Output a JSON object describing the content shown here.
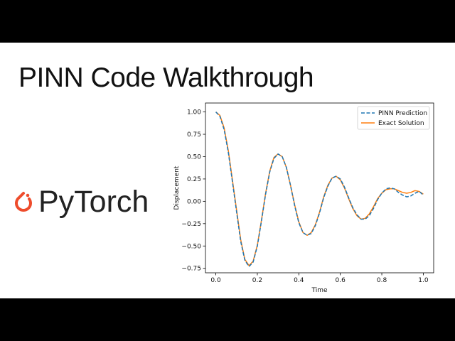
{
  "slide": {
    "title": "PINN Code Walkthrough",
    "brand": "PyTorch"
  },
  "colors": {
    "background": "#000000",
    "slide": "#ffffff",
    "pinn": "#1f77b4",
    "exact": "#ff7f0e",
    "pytorch_logo": "#ee4c2c"
  },
  "chart_data": {
    "type": "line",
    "title": "",
    "xlabel": "Time",
    "ylabel": "Displacement",
    "xlim": [
      -0.05,
      1.05
    ],
    "ylim": [
      -0.8,
      1.1
    ],
    "xticks": [
      0.0,
      0.2,
      0.4,
      0.6,
      0.8,
      1.0
    ],
    "xtick_labels": [
      "0.0",
      "0.2",
      "0.4",
      "0.6",
      "0.8",
      "1.0"
    ],
    "yticks": [
      -0.75,
      -0.5,
      -0.25,
      0.0,
      0.25,
      0.5,
      0.75,
      1.0
    ],
    "ytick_labels": [
      "−0.75",
      "−0.50",
      "−0.25",
      "0.00",
      "0.25",
      "0.50",
      "0.75",
      "1.00"
    ],
    "legend_position": "top-right",
    "grid": false,
    "series": [
      {
        "name": "PINN Prediction",
        "style": "dashed",
        "color": "#1f77b4",
        "x": [
          0.0,
          0.02,
          0.04,
          0.06,
          0.08,
          0.1,
          0.12,
          0.14,
          0.16,
          0.18,
          0.2,
          0.22,
          0.24,
          0.26,
          0.28,
          0.3,
          0.32,
          0.34,
          0.36,
          0.38,
          0.4,
          0.42,
          0.44,
          0.46,
          0.48,
          0.5,
          0.52,
          0.54,
          0.56,
          0.58,
          0.6,
          0.62,
          0.64,
          0.66,
          0.68,
          0.7,
          0.72,
          0.74,
          0.76,
          0.78,
          0.8,
          0.82,
          0.84,
          0.86,
          0.88,
          0.9,
          0.92,
          0.94,
          0.96,
          0.98,
          1.0
        ],
        "y": [
          1.0,
          0.95,
          0.8,
          0.55,
          0.22,
          -0.12,
          -0.45,
          -0.66,
          -0.73,
          -0.68,
          -0.5,
          -0.22,
          0.08,
          0.33,
          0.48,
          0.53,
          0.5,
          0.38,
          0.18,
          -0.05,
          -0.24,
          -0.35,
          -0.38,
          -0.36,
          -0.27,
          -0.13,
          0.04,
          0.17,
          0.26,
          0.28,
          0.25,
          0.16,
          0.04,
          -0.07,
          -0.15,
          -0.2,
          -0.2,
          -0.16,
          -0.08,
          0.02,
          0.09,
          0.14,
          0.15,
          0.14,
          0.1,
          0.07,
          0.05,
          0.06,
          0.09,
          0.11,
          0.07
        ]
      },
      {
        "name": "Exact Solution",
        "style": "solid",
        "color": "#ff7f0e",
        "x": [
          0.0,
          0.02,
          0.04,
          0.06,
          0.08,
          0.1,
          0.12,
          0.14,
          0.16,
          0.18,
          0.2,
          0.22,
          0.24,
          0.26,
          0.28,
          0.3,
          0.32,
          0.34,
          0.36,
          0.38,
          0.4,
          0.42,
          0.44,
          0.46,
          0.48,
          0.5,
          0.52,
          0.54,
          0.56,
          0.58,
          0.6,
          0.62,
          0.64,
          0.66,
          0.68,
          0.7,
          0.72,
          0.74,
          0.76,
          0.78,
          0.8,
          0.82,
          0.84,
          0.86,
          0.88,
          0.9,
          0.92,
          0.94,
          0.96,
          0.98,
          1.0
        ],
        "y": [
          1.0,
          0.96,
          0.82,
          0.57,
          0.24,
          -0.1,
          -0.43,
          -0.65,
          -0.72,
          -0.67,
          -0.49,
          -0.21,
          0.09,
          0.34,
          0.49,
          0.53,
          0.5,
          0.38,
          0.18,
          -0.04,
          -0.23,
          -0.35,
          -0.38,
          -0.35,
          -0.26,
          -0.12,
          0.05,
          0.18,
          0.26,
          0.28,
          0.24,
          0.15,
          0.03,
          -0.08,
          -0.16,
          -0.2,
          -0.19,
          -0.14,
          -0.06,
          0.03,
          0.09,
          0.13,
          0.14,
          0.14,
          0.12,
          0.1,
          0.09,
          0.1,
          0.12,
          0.11,
          0.08
        ]
      }
    ]
  }
}
